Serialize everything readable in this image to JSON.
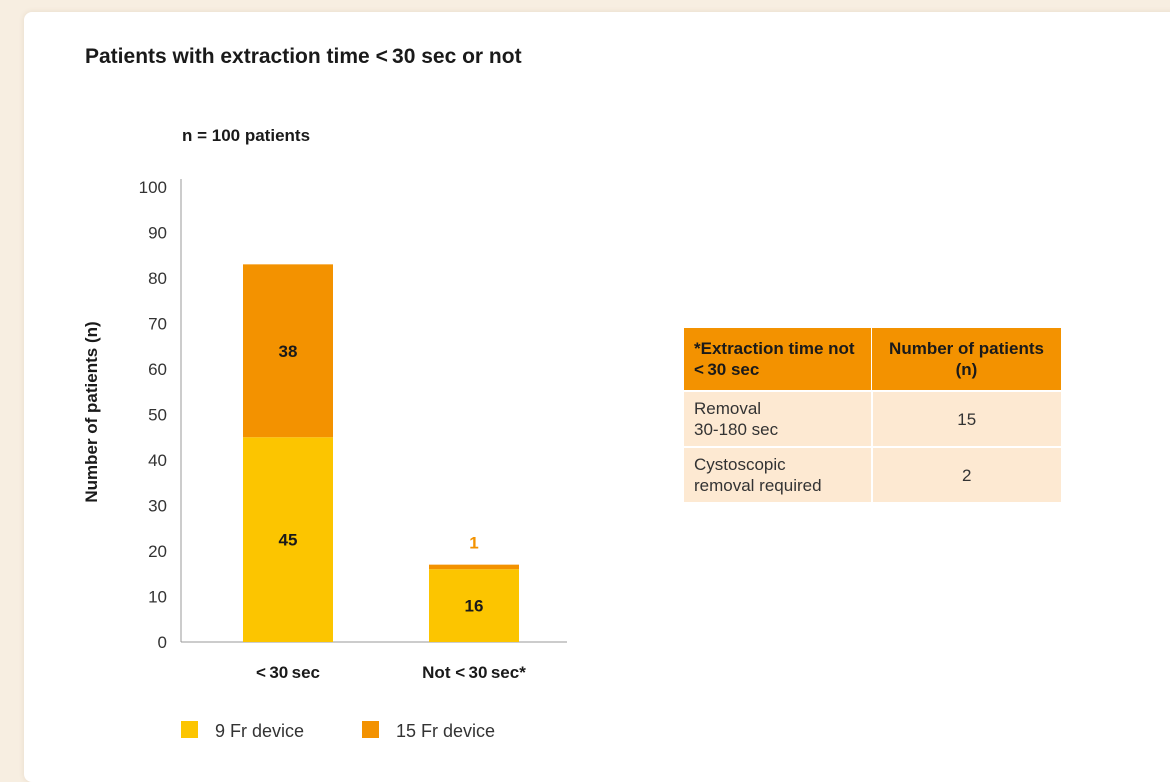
{
  "title": "Patients with extraction time < 30 sec or not",
  "colors": {
    "nine_fr": "#fcc500",
    "fifteen_fr": "#f39200",
    "outside_label": "#f39200"
  },
  "chart_data": {
    "type": "bar",
    "stacked": true,
    "subtitle": "n = 100 patients",
    "ylabel": "Number of patients (n)",
    "xlabel": "",
    "ylim": [
      0,
      100
    ],
    "yticks": [
      0,
      10,
      20,
      30,
      40,
      50,
      60,
      70,
      80,
      90,
      100
    ],
    "categories": [
      "< 30 sec",
      "Not < 30 sec*"
    ],
    "series": [
      {
        "name": "9 Fr device",
        "values": [
          45,
          16
        ],
        "color": "#fcc500"
      },
      {
        "name": "15 Fr device",
        "values": [
          38,
          1
        ],
        "color": "#f39200"
      }
    ],
    "grid": false,
    "legend": "bottom-left"
  },
  "table": {
    "headers": [
      "*Extraction time not < 30 sec",
      "Number of patients (n)"
    ],
    "rows": [
      {
        "label_line1": "Removal",
        "label_line2": "30-180 sec",
        "value": "15"
      },
      {
        "label_line1": "Cystoscopic",
        "label_line2": "removal required",
        "value": "2"
      }
    ]
  }
}
